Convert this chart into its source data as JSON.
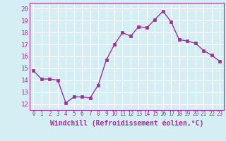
{
  "x": [
    0,
    1,
    2,
    3,
    4,
    5,
    6,
    7,
    8,
    9,
    10,
    11,
    12,
    13,
    14,
    15,
    16,
    17,
    18,
    19,
    20,
    21,
    22,
    23
  ],
  "y": [
    14.8,
    14.1,
    14.1,
    14.0,
    12.1,
    12.6,
    12.6,
    12.5,
    13.6,
    15.7,
    17.0,
    18.0,
    17.7,
    18.5,
    18.4,
    19.1,
    19.8,
    18.9,
    17.4,
    17.3,
    17.1,
    16.5,
    16.1,
    15.6
  ],
  "line_color": "#993399",
  "marker": "s",
  "marker_size": 2.2,
  "xlabel": "Windchill (Refroidissement éolien,°C)",
  "xlabel_fontsize": 7,
  "bg_color": "#d4eef4",
  "grid_color": "#ffffff",
  "tick_color": "#993399",
  "label_color": "#993399",
  "xlim": [
    -0.5,
    23.5
  ],
  "ylim": [
    11.5,
    20.5
  ],
  "yticks": [
    12,
    13,
    14,
    15,
    16,
    17,
    18,
    19,
    20
  ],
  "xticks": [
    0,
    1,
    2,
    3,
    4,
    5,
    6,
    7,
    8,
    9,
    10,
    11,
    12,
    13,
    14,
    15,
    16,
    17,
    18,
    19,
    20,
    21,
    22,
    23
  ],
  "xtick_fontsize": 5.5,
  "ytick_fontsize": 6.5,
  "spine_color": "#993399",
  "linewidth": 1.0
}
